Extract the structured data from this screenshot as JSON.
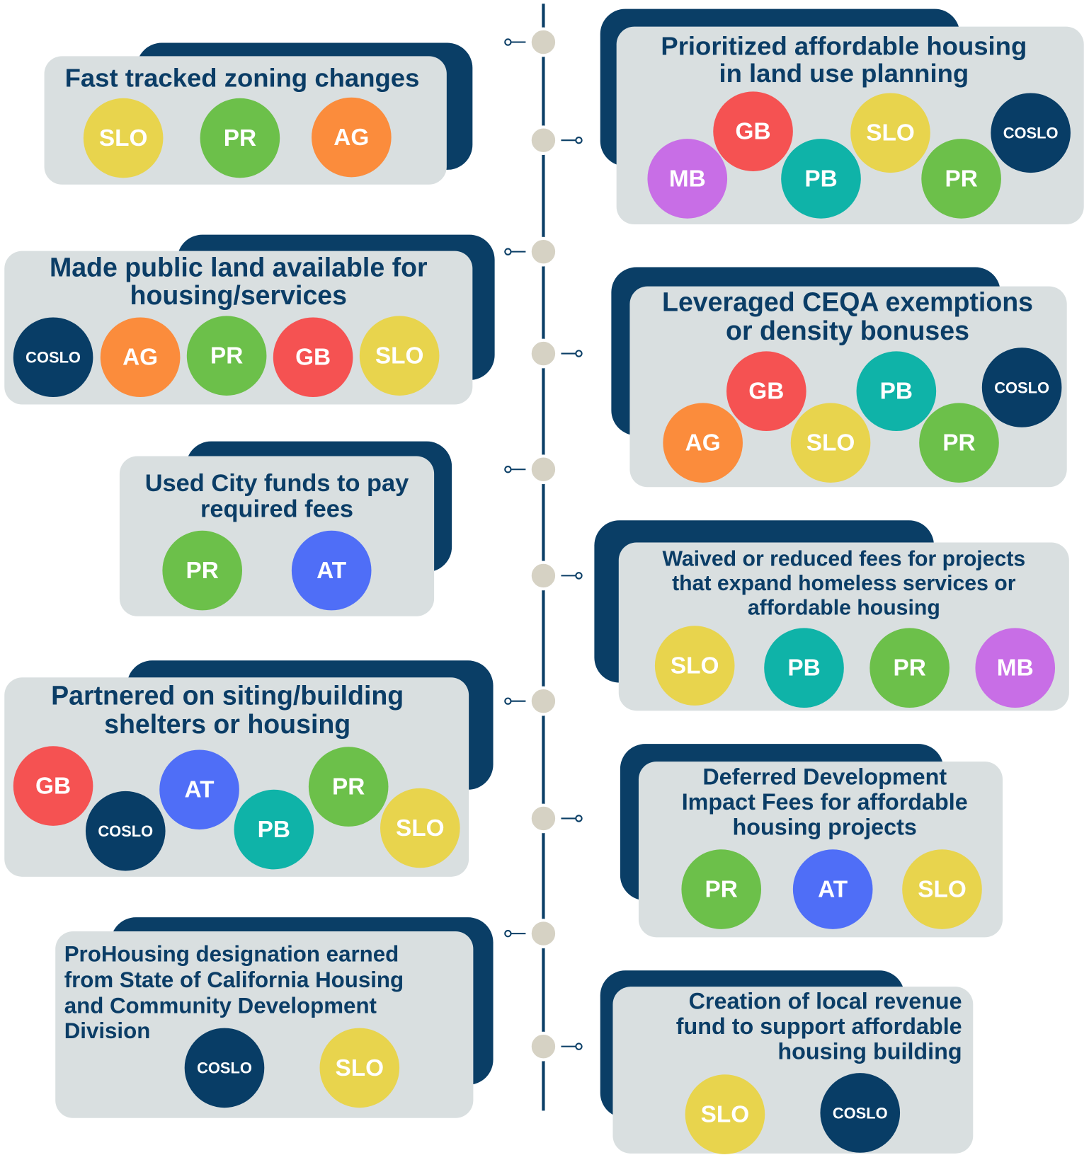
{
  "cards": [
    {
      "title_lines": [
        "Fast tracked zoning changes"
      ],
      "badges": [
        {
          "label": "SLO",
          "color": "#e8d44d"
        },
        {
          "label": "PR",
          "color": "#6cc04a"
        },
        {
          "label": "AG",
          "color": "#fb8c3c"
        }
      ]
    },
    {
      "title_lines": [
        "Prioritized affordable housing",
        "in land use planning"
      ],
      "badges": [
        {
          "label": "GB",
          "color": "#f55252"
        },
        {
          "label": "SLO",
          "color": "#e8d44d"
        },
        {
          "label": "COSLO",
          "color": "#083d66"
        },
        {
          "label": "MB",
          "color": "#c86ee6"
        },
        {
          "label": "PB",
          "color": "#0fb3a8"
        },
        {
          "label": "PR",
          "color": "#6cc04a"
        }
      ]
    },
    {
      "title_lines": [
        "Made public land available for",
        "housing/services"
      ],
      "badges": [
        {
          "label": "COSLO",
          "color": "#083d66"
        },
        {
          "label": "AG",
          "color": "#fb8c3c"
        },
        {
          "label": "PR",
          "color": "#6cc04a"
        },
        {
          "label": "GB",
          "color": "#f55252"
        },
        {
          "label": "SLO",
          "color": "#e8d44d"
        }
      ]
    },
    {
      "title_lines": [
        "Leveraged CEQA exemptions",
        "or density bonuses"
      ],
      "badges": [
        {
          "label": "GB",
          "color": "#f55252"
        },
        {
          "label": "PB",
          "color": "#0fb3a8"
        },
        {
          "label": "COSLO",
          "color": "#083d66"
        },
        {
          "label": "AG",
          "color": "#fb8c3c"
        },
        {
          "label": "SLO",
          "color": "#e8d44d"
        },
        {
          "label": "PR",
          "color": "#6cc04a"
        }
      ]
    },
    {
      "title_lines": [
        "Used City funds to pay",
        "required fees"
      ],
      "badges": [
        {
          "label": "PR",
          "color": "#6cc04a"
        },
        {
          "label": "AT",
          "color": "#4f6ef7"
        }
      ]
    },
    {
      "title_lines": [
        "Waived or reduced fees for projects",
        "that expand homeless services or",
        "affordable housing"
      ],
      "badges": [
        {
          "label": "SLO",
          "color": "#e8d44d"
        },
        {
          "label": "PB",
          "color": "#0fb3a8"
        },
        {
          "label": "PR",
          "color": "#6cc04a"
        },
        {
          "label": "MB",
          "color": "#c86ee6"
        }
      ]
    },
    {
      "title_lines": [
        "Partnered on siting/building",
        "shelters or housing"
      ],
      "badges": [
        {
          "label": "GB",
          "color": "#f55252"
        },
        {
          "label": "COSLO",
          "color": "#083d66"
        },
        {
          "label": "AT",
          "color": "#4f6ef7"
        },
        {
          "label": "PB",
          "color": "#0fb3a8"
        },
        {
          "label": "PR",
          "color": "#6cc04a"
        },
        {
          "label": "SLO",
          "color": "#e8d44d"
        }
      ]
    },
    {
      "title_lines": [
        "Deferred Development",
        "Impact Fees for affordable",
        "housing projects"
      ],
      "badges": [
        {
          "label": "PR",
          "color": "#6cc04a"
        },
        {
          "label": "AT",
          "color": "#4f6ef7"
        },
        {
          "label": "SLO",
          "color": "#e8d44d"
        }
      ]
    },
    {
      "title_lines": [
        "ProHousing designation earned",
        "from State of California Housing",
        "and Community Development",
        "Division"
      ],
      "badges": [
        {
          "label": "COSLO",
          "color": "#083d66"
        },
        {
          "label": "SLO",
          "color": "#e8d44d"
        }
      ]
    },
    {
      "title_lines": [
        "Creation of local revenue",
        "fund to support affordable",
        "housing building"
      ],
      "badges": [
        {
          "label": "SLO",
          "color": "#e8d44d"
        },
        {
          "label": "COSLO",
          "color": "#083d66"
        }
      ]
    }
  ]
}
